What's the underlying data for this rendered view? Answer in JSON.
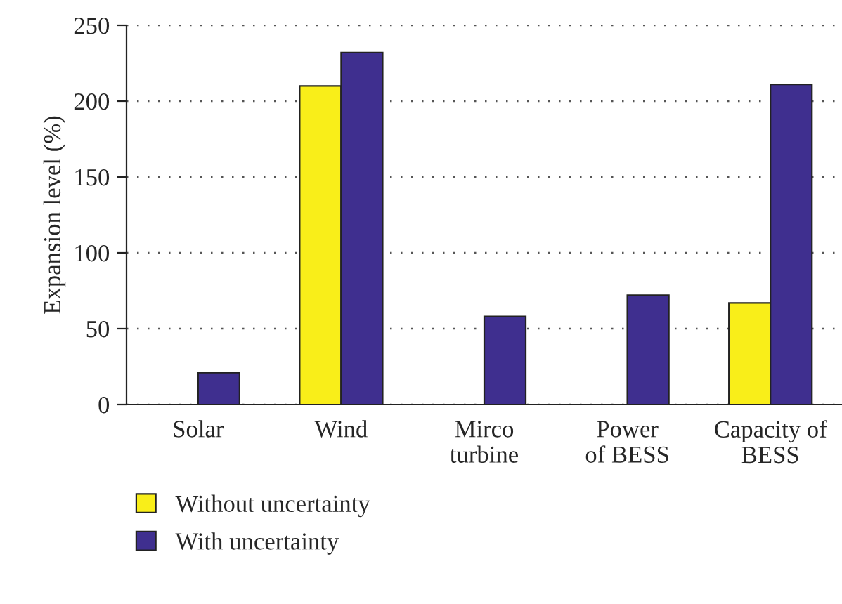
{
  "chart_data": {
    "type": "bar",
    "ylabel": "Expansion level (%)",
    "categories": [
      "Solar",
      "Wind",
      "Mirco\nturbine",
      "Power\nof BESS",
      "Capacity of\nBESS"
    ],
    "series": [
      {
        "name": "Without uncertainty",
        "color": "#f9ee19",
        "values": [
          null,
          210,
          null,
          null,
          67
        ]
      },
      {
        "name": "With uncertainty",
        "color": "#3f2f8f",
        "values": [
          21,
          232,
          58,
          72,
          211
        ]
      }
    ],
    "ylim": [
      0,
      250
    ],
    "yticks": [
      0,
      50,
      100,
      150,
      200,
      250
    ],
    "grid": "y",
    "legend": "bottom left"
  }
}
